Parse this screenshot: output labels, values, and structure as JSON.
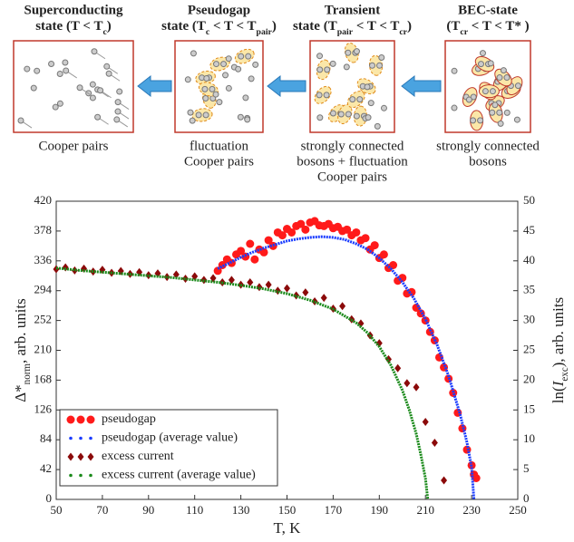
{
  "diagram": {
    "states": [
      {
        "title": "Superconducting",
        "condition": [
          {
            "text": "state (T < T"
          },
          {
            "sub": "c"
          },
          {
            "text": ")"
          }
        ],
        "caption": [
          "Cooper pairs"
        ]
      },
      {
        "title": "Pseudogap",
        "condition": [
          {
            "text": "state (T"
          },
          {
            "sub": "c"
          },
          {
            "text": " < T < T"
          },
          {
            "sub": "pair"
          },
          {
            "text": ")"
          }
        ],
        "caption": [
          "fluctuation",
          "Cooper pairs"
        ]
      },
      {
        "title": "Transient",
        "condition": [
          {
            "text": "state (T"
          },
          {
            "sub": "pair"
          },
          {
            "text": " < T < T"
          },
          {
            "sub": "cr"
          },
          {
            "text": ")"
          }
        ],
        "caption": [
          "strongly connected",
          "bosons + fluctuation",
          "Cooper pairs"
        ]
      },
      {
        "title": "BEC-state",
        "condition": [
          {
            "text": "(T"
          },
          {
            "sub": "cr"
          },
          {
            "text": " < T < T* )"
          }
        ],
        "caption": [
          "strongly connected",
          "bosons"
        ]
      }
    ]
  },
  "chart_data": {
    "type": "line",
    "xlabel": "T, K",
    "ylabel": [
      {
        "text": "Δ*"
      },
      {
        "sub": "norm"
      },
      {
        "text": ", arb. units"
      }
    ],
    "y2label": [
      {
        "text": "ln("
      },
      {
        "italic": "I"
      },
      {
        "sub": "exc"
      },
      {
        "text": "), arb. units"
      }
    ],
    "xlim": [
      50,
      250
    ],
    "xticks": [
      50,
      70,
      90,
      110,
      130,
      150,
      170,
      190,
      210,
      230,
      250
    ],
    "ylim": [
      0,
      420
    ],
    "yticks": [
      0,
      42,
      84,
      126,
      168,
      210,
      252,
      294,
      336,
      378,
      420
    ],
    "y2lim": [
      0,
      50
    ],
    "y2ticks": [
      0,
      5,
      10,
      15,
      20,
      25,
      30,
      35,
      40,
      45,
      50
    ],
    "legend": "lower left",
    "series": [
      {
        "name": "pseudogap",
        "color": "#ff1a1a",
        "marker": "circle",
        "axis": "y",
        "x": [
          120,
          122,
          124,
          126,
          128,
          130,
          132,
          134,
          136,
          138,
          140,
          142,
          144,
          146,
          148,
          150,
          152,
          154,
          156,
          158,
          160,
          162,
          164,
          166,
          168,
          170,
          172,
          174,
          176,
          178,
          180,
          182,
          184,
          186,
          188,
          190,
          192,
          194,
          196,
          198,
          200,
          202,
          204,
          206,
          208,
          210,
          212,
          214,
          216,
          218,
          220,
          222,
          224,
          226,
          228,
          230,
          231,
          232
        ],
        "values": [
          322,
          330,
          338,
          333,
          345,
          350,
          342,
          360,
          338,
          352,
          348,
          365,
          357,
          376,
          372,
          381,
          376,
          385,
          388,
          380,
          390,
          392,
          386,
          385,
          388,
          382,
          384,
          378,
          380,
          372,
          376,
          365,
          368,
          352,
          358,
          340,
          345,
          326,
          330,
          308,
          312,
          290,
          292,
          270,
          262,
          252,
          236,
          224,
          200,
          186,
          170,
          150,
          122,
          100,
          70,
          48,
          35,
          30
        ]
      },
      {
        "name": "pseudogap (average value)",
        "color": "#1a3cff",
        "marker": "line",
        "axis": "y",
        "x": [
          120,
          125,
          130,
          135,
          140,
          145,
          150,
          155,
          160,
          165,
          170,
          175,
          180,
          185,
          190,
          195,
          200,
          205,
          210,
          215,
          220,
          225,
          228,
          230,
          231
        ],
        "values": [
          325,
          333,
          341,
          348,
          354,
          359,
          364,
          367,
          369,
          370,
          369,
          366,
          360,
          352,
          340,
          325,
          306,
          283,
          254,
          218,
          174,
          120,
          80,
          45,
          0
        ]
      },
      {
        "name": "excess current",
        "color": "#8b0a0a",
        "marker": "diamond",
        "axis": "y2",
        "x": [
          50,
          54,
          58,
          62,
          66,
          70,
          74,
          78,
          82,
          86,
          90,
          94,
          98,
          102,
          106,
          110,
          114,
          118,
          122,
          126,
          130,
          134,
          138,
          142,
          146,
          150,
          154,
          158,
          162,
          166,
          170,
          174,
          178,
          182,
          186,
          190,
          194,
          198,
          202,
          206,
          210,
          214,
          218
        ],
        "values": [
          38.6,
          38.9,
          38.4,
          38.7,
          38.2,
          38.5,
          38.0,
          38.3,
          37.8,
          38.1,
          37.6,
          37.9,
          37.3,
          37.7,
          37.0,
          37.4,
          36.8,
          37.1,
          36.4,
          36.8,
          36.0,
          36.4,
          35.6,
          36.0,
          35.0,
          35.4,
          34.2,
          34.7,
          33.2,
          33.8,
          32.0,
          32.4,
          30.2,
          29.5,
          27.5,
          26.2,
          23.5,
          22.0,
          19.5,
          18.8,
          13.0,
          9.5,
          3.2
        ]
      },
      {
        "name": "excess current (average value)",
        "color": "#1a8a1a",
        "marker": "line",
        "axis": "y2",
        "x": [
          50,
          60,
          70,
          80,
          90,
          100,
          110,
          120,
          130,
          140,
          150,
          160,
          170,
          180,
          185,
          190,
          195,
          200,
          203,
          206,
          208,
          210,
          211
        ],
        "values": [
          38.8,
          38.4,
          38.1,
          37.8,
          37.5,
          37.2,
          36.8,
          36.4,
          35.9,
          35.3,
          34.5,
          33.4,
          31.9,
          29.6,
          27.9,
          25.6,
          22.5,
          18.3,
          15.0,
          11.0,
          7.5,
          3.5,
          0
        ]
      }
    ]
  }
}
